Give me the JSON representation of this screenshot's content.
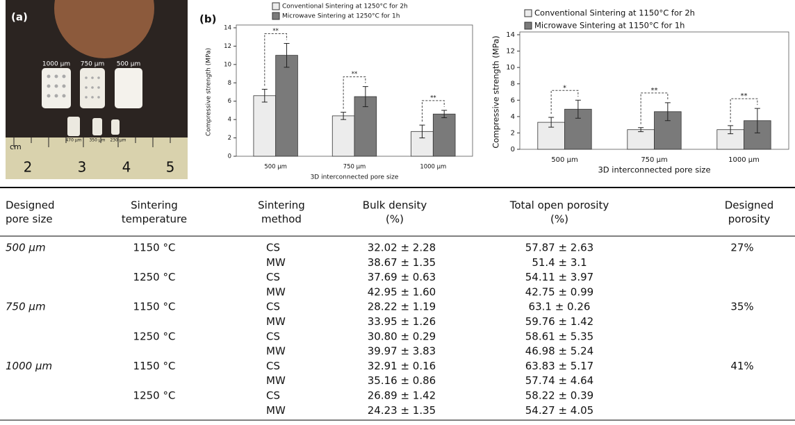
{
  "photo": {
    "label": "(a)",
    "sizes": [
      "1000 µm",
      "750 µm",
      "500 µm"
    ],
    "small_sizes": [
      "470 µm",
      "350 µm",
      "230 µm"
    ],
    "unit": "cm",
    "ruler": [
      "2",
      "3",
      "4",
      "5"
    ]
  },
  "panel_b_label": "(b)",
  "chart_data": [
    {
      "type": "bar",
      "y_label": "Compressive strength (MPa)",
      "x_label": "3D interconnected pore size",
      "categories": [
        "500 µm",
        "750 µm",
        "1000 µm"
      ],
      "series": [
        {
          "name": "Conventional Sintering at 1250°C for 2h",
          "color": "#ececec",
          "values": [
            6.6,
            4.4,
            2.7
          ],
          "errors": [
            0.7,
            0.4,
            0.7
          ]
        },
        {
          "name": "Microwave Sintering at 1250°C for 1h",
          "color": "#7a7a7a",
          "values": [
            11.0,
            6.5,
            4.6
          ],
          "errors": [
            1.3,
            1.1,
            0.4
          ]
        }
      ],
      "annotations": [
        "**",
        "**",
        "**"
      ],
      "ylim": [
        0,
        14
      ],
      "yticks": [
        0,
        2,
        4,
        6,
        8,
        10,
        12,
        14
      ]
    },
    {
      "type": "bar",
      "y_label": "Compressive strength (MPa)",
      "x_label": "3D interconnected pore size",
      "categories": [
        "500 µm",
        "750 µm",
        "1000 µm"
      ],
      "series": [
        {
          "name": "Conventional Sintering at 1150°C for 2h",
          "color": "#ececec",
          "values": [
            3.3,
            2.4,
            2.4
          ],
          "errors": [
            0.6,
            0.25,
            0.5
          ]
        },
        {
          "name": "Microwave Sintering at 1150°C for 1h",
          "color": "#7a7a7a",
          "values": [
            4.9,
            4.6,
            3.5
          ],
          "errors": [
            1.1,
            1.1,
            1.5
          ]
        }
      ],
      "annotations": [
        "*",
        "**",
        "**"
      ],
      "ylim": [
        0,
        14
      ],
      "yticks": [
        0,
        2,
        4,
        6,
        8,
        10,
        12,
        14
      ]
    }
  ],
  "table": {
    "header": [
      [
        "Designed",
        "pore size"
      ],
      [
        "Sintering",
        "temperature"
      ],
      [
        "Sintering",
        "method"
      ],
      [
        "Bulk density",
        "(%)"
      ],
      [
        "Total open porosity",
        "(%)"
      ],
      [
        "Designed",
        "porosity"
      ]
    ],
    "rows": [
      [
        "500 μm",
        "1150 °C",
        "CS",
        "32.02 ± 2.28",
        "57.87 ± 2.63",
        "27%"
      ],
      [
        null,
        null,
        "MW",
        "38.67 ± 1.35",
        "51.4 ± 3.1",
        null
      ],
      [
        null,
        "1250 °C",
        "CS",
        "37.69 ± 0.63",
        "54.11 ± 3.97",
        null
      ],
      [
        null,
        null,
        "MW",
        "42.95 ± 1.60",
        "42.75 ± 0.99",
        null
      ],
      [
        "750 μm",
        "1150 °C",
        "CS",
        "28.22 ± 1.19",
        "63.1 ± 0.26",
        "35%"
      ],
      [
        null,
        null,
        "MW",
        "33.95 ± 1.26",
        "59.76 ± 1.42",
        null
      ],
      [
        null,
        "1250 °C",
        "CS",
        "30.80 ± 0.29",
        "58.61 ± 5.35",
        null
      ],
      [
        null,
        null,
        "MW",
        "39.97 ± 3.83",
        "46.98 ± 5.24",
        null
      ],
      [
        "1000 μm",
        "1150 °C",
        "CS",
        "32.91 ± 0.16",
        "63.83 ± 5.17",
        "41%"
      ],
      [
        null,
        null,
        "MW",
        "35.16 ± 0.86",
        "57.74 ± 4.64",
        null
      ],
      [
        null,
        "1250 °C",
        "CS",
        "26.89 ± 1.42",
        "58.22 ± 0.39",
        null
      ],
      [
        null,
        null,
        "MW",
        "24.23 ± 1.35",
        "54.27 ± 4.05",
        null
      ]
    ]
  }
}
